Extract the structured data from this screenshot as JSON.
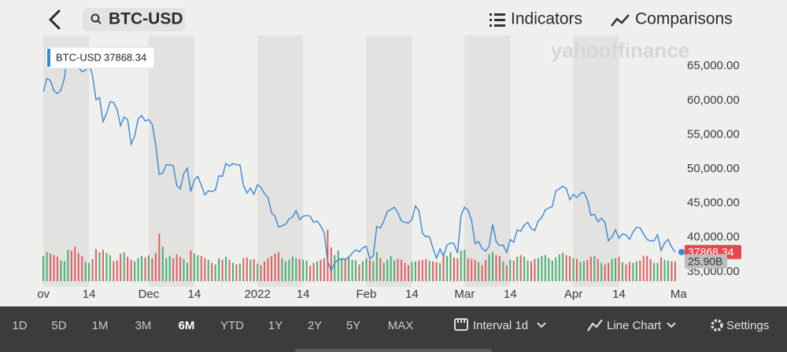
{
  "header": {
    "search": "BTC-USD",
    "indicators": "Indicators",
    "comparisons": "Comparisons"
  },
  "watermark": "yahoo!finance",
  "chart_data": {
    "type": "line",
    "series": [
      {
        "name": "BTC-USD",
        "color": "#3b87d0",
        "values": [
          61300,
          63200,
          62900,
          61400,
          61000,
          61500,
          63300,
          67500,
          66900,
          64900,
          64800,
          64200,
          64400,
          65500,
          63600,
          60100,
          60400,
          56900,
          58100,
          59800,
          59700,
          58700,
          56300,
          57600,
          57200,
          53600,
          54800,
          57300,
          57800,
          57000,
          57200,
          56500,
          53600,
          49200,
          49400,
          50600,
          50600,
          50500,
          47600,
          47100,
          49300,
          50100,
          46700,
          48400,
          48900,
          47600,
          46200,
          46800,
          46700,
          46900,
          49000,
          48900,
          50800,
          50400,
          50800,
          50600,
          50600,
          47600,
          46500,
          47200,
          46300,
          47700,
          47300,
          46400,
          45800,
          43600,
          43100,
          41500,
          41700,
          41900,
          42700,
          43000,
          43900,
          42600,
          43100,
          43200,
          43100,
          42200,
          42400,
          41700,
          40700,
          36500,
          35100,
          36300,
          36700,
          36900,
          36800,
          37100,
          37700,
          38200,
          37900,
          38500,
          38700,
          36900,
          37300,
          41600,
          41400,
          42400,
          43800,
          44100,
          44400,
          43600,
          42400,
          42200,
          42100,
          42600,
          44600,
          43900,
          40600,
          40100,
          40100,
          38400,
          37000,
          38300,
          37300,
          38900,
          39200,
          39100,
          37700,
          43200,
          44400,
          44000,
          42500,
          39100,
          39400,
          38400,
          38000,
          38700,
          41900,
          39400,
          38800,
          38900,
          37800,
          39700,
          39300,
          41100,
          40900,
          41800,
          42200,
          41300,
          41000,
          42400,
          42900,
          44000,
          44300,
          44500,
          46800,
          47100,
          47500,
          47100,
          45500,
          46300,
          45800,
          46400,
          46600,
          45500,
          43200,
          43400,
          42300,
          42800,
          42200,
          39500,
          40100,
          41100,
          39900,
          40500,
          40400,
          39700,
          40800,
          41500,
          41400,
          40500,
          39700,
          39500,
          39500,
          40400,
          38100,
          39200,
          39700,
          38600,
          37868.34
        ]
      }
    ],
    "volume": {
      "up_color": "#4caf72",
      "down_color": "#e06060",
      "last_label": "25.90B",
      "values": [
        33,
        38,
        36,
        34,
        32,
        27,
        26,
        41,
        40,
        45,
        37,
        33,
        25,
        24,
        29,
        42,
        38,
        41,
        37,
        34,
        26,
        27,
        36,
        38,
        32,
        28,
        26,
        30,
        33,
        31,
        34,
        30,
        37,
        62,
        45,
        30,
        33,
        30,
        35,
        32,
        29,
        24,
        40,
        36,
        34,
        33,
        30,
        28,
        24,
        22,
        30,
        28,
        32,
        28,
        24,
        22,
        23,
        30,
        31,
        28,
        29,
        23,
        21,
        26,
        30,
        33,
        36,
        38,
        30,
        26,
        28,
        32,
        30,
        29,
        28,
        27,
        20,
        24,
        26,
        28,
        30,
        67,
        44,
        34,
        40,
        30,
        29,
        32,
        28,
        27,
        22,
        26,
        30,
        28,
        26,
        38,
        30,
        24,
        28,
        33,
        27,
        29,
        28,
        24,
        21,
        25,
        26,
        27,
        28,
        29,
        27,
        26,
        25,
        24,
        36,
        33,
        38,
        31,
        30,
        40,
        41,
        30,
        29,
        28,
        25,
        21,
        28,
        35,
        38,
        34,
        33,
        26,
        21,
        28,
        27,
        32,
        34,
        32,
        27,
        26,
        29,
        30,
        33,
        34,
        30,
        27,
        31,
        35,
        37,
        34,
        33,
        30,
        29,
        25,
        26,
        28,
        32,
        33,
        29,
        24,
        22,
        24,
        29,
        30,
        32,
        25,
        22,
        25,
        24,
        26,
        27,
        33,
        33,
        29,
        24,
        24,
        31,
        28,
        27,
        26,
        25.9
      ]
    },
    "y2lim": [
      0,
      320
    ],
    "xlim": [
      -1.6,
      181.6
    ],
    "xticks": [
      {
        "value": 0,
        "label": "ov"
      },
      {
        "value": 13,
        "label": "14"
      },
      {
        "value": 30,
        "label": "Dec"
      },
      {
        "value": 43,
        "label": "14"
      },
      {
        "value": 61,
        "label": "2022"
      },
      {
        "value": 74,
        "label": "14"
      },
      {
        "value": 92,
        "label": "Feb"
      },
      {
        "value": 105,
        "label": "14"
      },
      {
        "value": 120,
        "label": "Mar"
      },
      {
        "value": 133,
        "label": "14"
      },
      {
        "value": 151,
        "label": "Apr"
      },
      {
        "value": 164,
        "label": "14"
      },
      {
        "value": 181,
        "label": "Ma"
      }
    ],
    "ylim": [
      33600,
      69500
    ],
    "yticks": [
      {
        "value": 35000,
        "label": "35,000.00"
      },
      {
        "value": 40000,
        "label": "40,000.00"
      },
      {
        "value": 45000,
        "label": "45,000.00"
      },
      {
        "value": 50000,
        "label": "50,000.00"
      },
      {
        "value": 55000,
        "label": "55,000.00"
      },
      {
        "value": 60000,
        "label": "60,000.00"
      },
      {
        "value": 65000,
        "label": "65,000.00"
      }
    ],
    "band_color": "#e2e2e1",
    "last_tag_color": "#e5484d"
  },
  "toolbar": {
    "ranges": [
      "1D",
      "5D",
      "1M",
      "3M",
      "6M",
      "YTD",
      "1Y",
      "2Y",
      "5Y",
      "MAX"
    ],
    "selected": 4,
    "interval": "Interval 1d",
    "chart_type": "Line Chart",
    "settings": "Settings"
  }
}
